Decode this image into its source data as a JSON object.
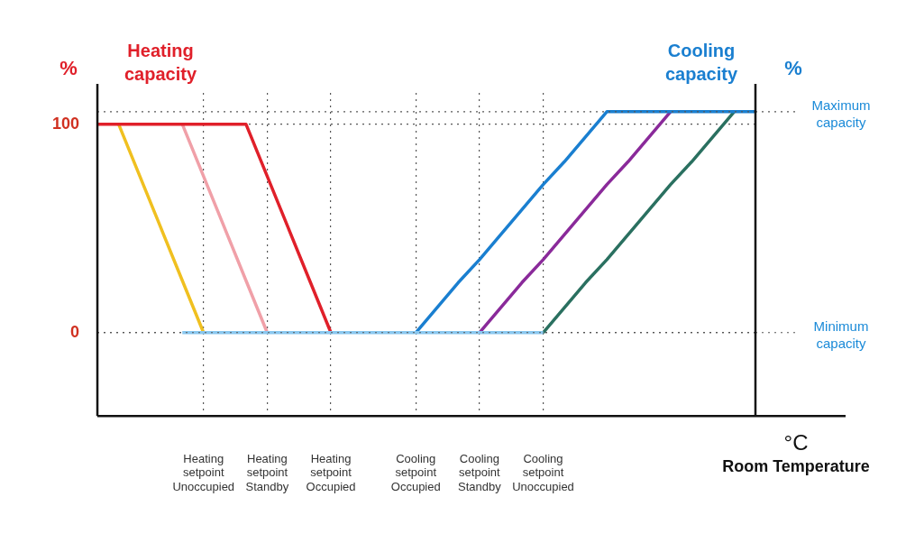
{
  "chart_data": {
    "type": "line",
    "ylabel": "Heating capacity",
    "y2label": "Cooling capacity",
    "xlabel": "Room Temperature",
    "annotations": [
      "%",
      "%",
      "°C"
    ],
    "categories": [
      null,
      null,
      null,
      null,
      null,
      "Heating setpoint Unoccupied",
      null,
      null,
      "Heating setpoint Standby",
      null,
      null,
      "Heating setpoint Occupied",
      null,
      null,
      null,
      "Cooling setpoint Occupied",
      null,
      null,
      "Cooling setpoint Standby",
      null,
      null,
      "Cooling setpoint Unoccupied",
      null,
      null,
      null,
      null,
      null,
      null,
      null,
      null,
      null,
      null
    ],
    "ylim": [
      -40,
      115
    ],
    "yticks": [
      0,
      100
    ],
    "grid": true,
    "line_style": "solid",
    "marker": "none",
    "ref_lines": [
      {
        "axis": "y",
        "value": 106,
        "label": "Maximum capacity",
        "line_style": "dotted"
      },
      {
        "axis": "y",
        "value": 0,
        "label": "Minimum capacity",
        "line_style": "dotted"
      }
    ],
    "series": [
      {
        "color": "#8ac8f0",
        "values": [
          null,
          null,
          null,
          null,
          0,
          0,
          0,
          0,
          0,
          0,
          0,
          0,
          0,
          0,
          0,
          0,
          0,
          0,
          0,
          0,
          0,
          0,
          null,
          null,
          null,
          null,
          null,
          null,
          null,
          null,
          null,
          null
        ]
      },
      {
        "color": "#e0202a",
        "values": [
          100,
          100,
          100,
          100,
          100,
          100,
          100,
          100,
          75,
          50,
          25,
          0,
          null,
          null,
          null,
          null,
          null,
          null,
          null,
          null,
          null,
          null,
          null,
          null,
          null,
          null,
          null,
          null,
          null,
          null,
          null,
          null
        ]
      },
      {
        "color": "#f0a0a8",
        "values": [
          null,
          null,
          null,
          null,
          100,
          75,
          50,
          25,
          0,
          null,
          null,
          null,
          null,
          null,
          null,
          null,
          null,
          null,
          null,
          null,
          null,
          null,
          null,
          null,
          null,
          null,
          null,
          null,
          null,
          null,
          null,
          null
        ]
      },
      {
        "color": "#f0c020",
        "values": [
          null,
          100,
          75,
          50,
          25,
          0,
          null,
          null,
          null,
          null,
          null,
          null,
          null,
          null,
          null,
          null,
          null,
          null,
          null,
          null,
          null,
          null,
          null,
          null,
          null,
          null,
          null,
          null,
          null,
          null,
          null,
          null
        ]
      },
      {
        "color": "#1a7fd0",
        "values": [
          null,
          null,
          null,
          null,
          null,
          null,
          null,
          null,
          null,
          null,
          null,
          null,
          null,
          null,
          null,
          0,
          12,
          24,
          35,
          47,
          59,
          71,
          82,
          94,
          106,
          106,
          106,
          106,
          106,
          106,
          106,
          106
        ]
      },
      {
        "color": "#8a2a9a",
        "values": [
          null,
          null,
          null,
          null,
          null,
          null,
          null,
          null,
          null,
          null,
          null,
          null,
          null,
          null,
          null,
          null,
          null,
          null,
          0,
          12,
          24,
          35,
          47,
          59,
          71,
          82,
          94,
          106,
          null,
          null,
          null,
          null
        ]
      },
      {
        "color": "#2a7060",
        "values": [
          null,
          null,
          null,
          null,
          null,
          null,
          null,
          null,
          null,
          null,
          null,
          null,
          null,
          null,
          null,
          null,
          null,
          null,
          null,
          null,
          null,
          0,
          12,
          24,
          35,
          47,
          59,
          71,
          82,
          94,
          106,
          null
        ]
      }
    ]
  }
}
